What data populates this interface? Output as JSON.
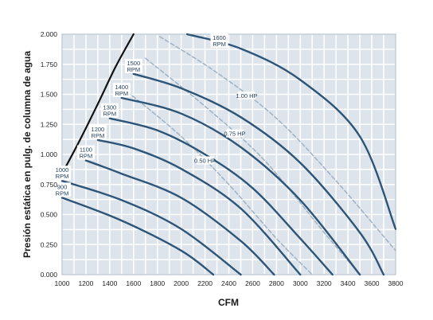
{
  "chart_data": {
    "type": "line",
    "xlabel": "CFM",
    "ylabel": "Presión estática en pulg. de columna de agua",
    "xlim": [
      1000,
      3800
    ],
    "ylim": [
      0,
      2.0
    ],
    "x_ticks": [
      "1000",
      "1200",
      "1400",
      "1600",
      "1800",
      "2000",
      "2200",
      "2400",
      "2600",
      "2800",
      "3000",
      "3200",
      "3400",
      "3600",
      "3800"
    ],
    "y_ticks": [
      "0.000",
      "0.250",
      "0.500",
      "0.750",
      "1.000",
      "1.250",
      "1.500",
      "1.750",
      "2.000"
    ],
    "grid": true,
    "colors": {
      "rpm": "#2e5577",
      "hp": "#9fb2c4",
      "limit": "#111111",
      "grid": "#a6b6c6",
      "plot_bg": "#dde4eb"
    },
    "series": [
      {
        "kind": "rpm",
        "name": "900\nRPM",
        "x": [
          1000,
          1500,
          2000,
          2270
        ],
        "y": [
          0.64,
          0.45,
          0.2,
          0.0
        ]
      },
      {
        "kind": "rpm",
        "name": "1000\nRPM",
        "x": [
          1000,
          1500,
          2000,
          2500
        ],
        "y": [
          0.78,
          0.62,
          0.38,
          0.0
        ]
      },
      {
        "kind": "rpm",
        "name": "1100\nRPM",
        "x": [
          1200,
          1500,
          2000,
          2500,
          2780
        ],
        "y": [
          0.95,
          0.84,
          0.64,
          0.28,
          0.0
        ]
      },
      {
        "kind": "rpm",
        "name": "1200\nRPM",
        "x": [
          1300,
          1600,
          2000,
          2500,
          3000
        ],
        "y": [
          1.12,
          1.05,
          0.88,
          0.55,
          0.0
        ]
      },
      {
        "kind": "rpm",
        "name": "1300\nRPM",
        "x": [
          1400,
          1800,
          2200,
          2600,
          3000,
          3270
        ],
        "y": [
          1.3,
          1.2,
          1.0,
          0.72,
          0.3,
          0.0
        ]
      },
      {
        "kind": "rpm",
        "name": "1400\nRPM",
        "x": [
          1500,
          2000,
          2500,
          3000,
          3500
        ],
        "y": [
          1.47,
          1.34,
          1.06,
          0.62,
          0.0
        ]
      },
      {
        "kind": "rpm",
        "name": "1500\nRPM",
        "x": [
          1600,
          2000,
          2500,
          3000,
          3500,
          3700
        ],
        "y": [
          1.67,
          1.55,
          1.31,
          0.93,
          0.35,
          0.0
        ]
      },
      {
        "kind": "rpm",
        "name": "1600\nRPM",
        "x": [
          2050,
          2500,
          3000,
          3500,
          3800
        ],
        "y": [
          2.0,
          1.88,
          1.62,
          1.15,
          0.38
        ]
      },
      {
        "kind": "hp",
        "name": "0.50 HP",
        "x": [
          1550,
          2000,
          2400,
          2800,
          3100
        ],
        "y": [
          1.52,
          1.15,
          0.75,
          0.3,
          0.0
        ]
      },
      {
        "kind": "hp",
        "name": "0.75 HP",
        "x": [
          1700,
          2200,
          2700,
          3200,
          3500
        ],
        "y": [
          1.8,
          1.4,
          0.95,
          0.35,
          0.0
        ]
      },
      {
        "kind": "hp",
        "name": "1.00 HP",
        "x": [
          1820,
          2300,
          2800,
          3300,
          3800
        ],
        "y": [
          1.98,
          1.68,
          1.3,
          0.78,
          0.2
        ]
      },
      {
        "kind": "limit",
        "name": "",
        "x": [
          1000,
          1150,
          1300,
          1450,
          1600
        ],
        "y": [
          0.84,
          1.12,
          1.42,
          1.73,
          2.0
        ]
      }
    ]
  }
}
